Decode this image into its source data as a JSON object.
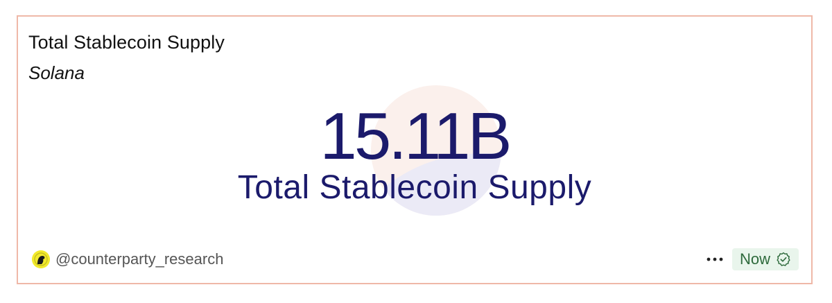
{
  "card": {
    "title": "Total Stablecoin Supply",
    "subtitle": "Solana",
    "metric": {
      "value": "15.11B",
      "label": "Total Stablecoin Supply"
    },
    "footer": {
      "author": "@counterparty_research",
      "status": "Now",
      "menu_icon": "more-dots-icon",
      "status_icon": "verified-check-icon"
    }
  },
  "colors": {
    "border": "#efb8a8",
    "metric_text": "#1b1a6b",
    "status_bg": "#e9f5ec",
    "status_text": "#2e6a3c",
    "avatar_bg": "#f2ea2c"
  }
}
